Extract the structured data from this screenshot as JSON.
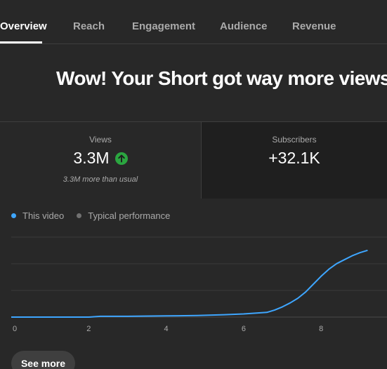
{
  "tabs": [
    {
      "label": "Overview",
      "active": true
    },
    {
      "label": "Reach",
      "active": false
    },
    {
      "label": "Engagement",
      "active": false
    },
    {
      "label": "Audience",
      "active": false
    },
    {
      "label": "Revenue",
      "active": false
    }
  ],
  "headline": "Wow! Your Short got way more views a",
  "metrics": {
    "views": {
      "label": "Views",
      "value": "3.3M",
      "note": "3.3M more than usual",
      "trend_icon": "arrow-up-circle-icon"
    },
    "subscribers": {
      "label": "Subscribers",
      "value": "+32.1K"
    }
  },
  "legend": {
    "this_video": "This video",
    "typical": "Typical performance"
  },
  "colors": {
    "this_video": "#3ea6ff",
    "typical": "#717171",
    "up_badge": "#2ba640",
    "background": "#282828"
  },
  "chart_data": {
    "type": "line",
    "x_ticks": [
      "0",
      "2",
      "4",
      "6",
      "8"
    ],
    "xlim": [
      0,
      9.7
    ],
    "ylim": [
      0,
      1
    ],
    "y_axis_labels": false,
    "grid": true,
    "series": [
      {
        "name": "This video",
        "x": [
          0,
          2,
          2.3,
          3,
          4,
          4.8,
          5.5,
          6.0,
          6.3,
          6.6,
          6.8,
          7.0,
          7.2,
          7.4,
          7.6,
          7.8,
          8.0,
          8.2,
          8.4,
          8.6,
          8.8,
          9.0,
          9.2
        ],
        "y": [
          0,
          0,
          0.01,
          0.01,
          0.015,
          0.02,
          0.03,
          0.04,
          0.05,
          0.06,
          0.09,
          0.13,
          0.18,
          0.24,
          0.32,
          0.42,
          0.52,
          0.61,
          0.68,
          0.73,
          0.78,
          0.82,
          0.85
        ]
      }
    ]
  },
  "see_more": "See more"
}
